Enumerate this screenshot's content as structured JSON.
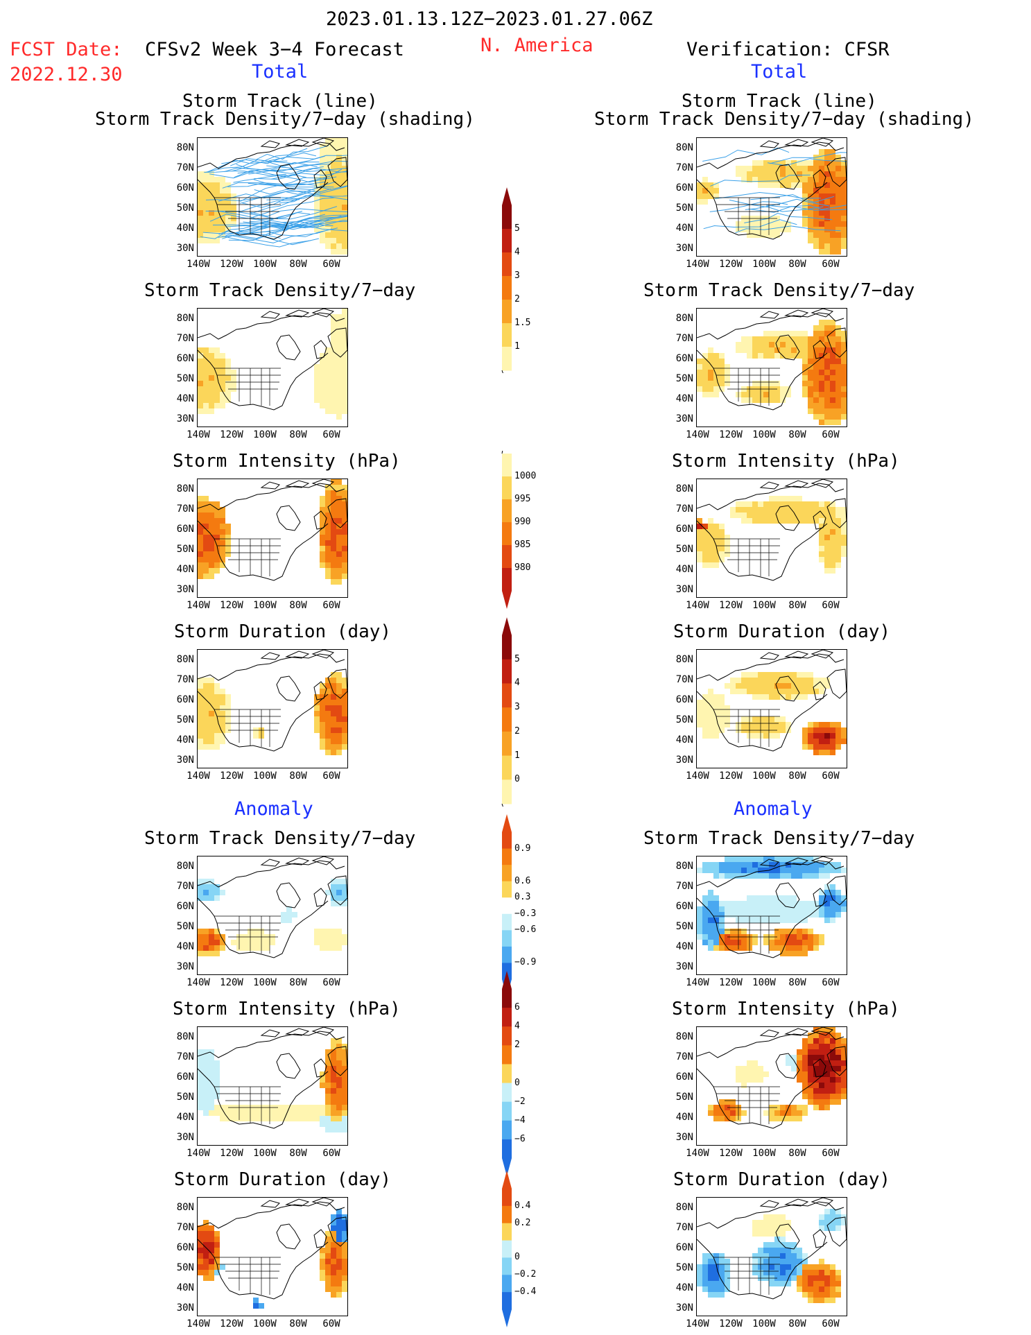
{
  "header": {
    "period": "2023.01.13.12Z−2023.01.27.06Z",
    "region": "N. America",
    "fcst_label": "FCST Date:",
    "fcst_date": "2022.12.30",
    "forecast_title": "CFSv2 Week 3−4 Forecast",
    "verification_title": "Verification: CFSR",
    "total_label": "Total",
    "anomaly_label": "Anomaly"
  },
  "panel_titles": {
    "track_line": "Storm Track (line)",
    "track_shading": "Storm Track Density/7−day (shading)",
    "density": "Storm Track Density/7−day",
    "intensity": "Storm Intensity (hPa)",
    "duration": "Storm Duration (day)"
  },
  "axes": {
    "lat_labels": [
      "80N",
      "70N",
      "60N",
      "50N",
      "40N",
      "30N"
    ],
    "lon_labels": [
      "140W",
      "120W",
      "100W",
      "80W",
      "60W"
    ]
  },
  "colorbars": {
    "density_total": [
      "5",
      "4",
      "3",
      "2",
      "1.5",
      "1"
    ],
    "intensity_total": [
      "1000",
      "995",
      "990",
      "985",
      "980"
    ],
    "duration_total": [
      "5",
      "4",
      "3",
      "2",
      "1",
      "0"
    ],
    "density_anom": [
      "0.9",
      "0.6",
      "0.3",
      "−0.3",
      "−0.6",
      "−0.9"
    ],
    "intensity_anom": [
      "6",
      "4",
      "2",
      "0",
      "−2",
      "−4",
      "−6"
    ],
    "duration_anom": [
      "0.4",
      "0.2",
      "0",
      "−0.2",
      "−0.4"
    ]
  },
  "colors": {
    "warm": [
      "#fff5b0",
      "#fbd65a",
      "#f8a225",
      "#f47a10",
      "#e34a12",
      "#c11f12",
      "#8b0a0a"
    ],
    "cool": [
      "#c8f0f8",
      "#86d5f5",
      "#4aa8f0",
      "#1f6ee0"
    ],
    "track_line": "#3aa0e8"
  }
}
